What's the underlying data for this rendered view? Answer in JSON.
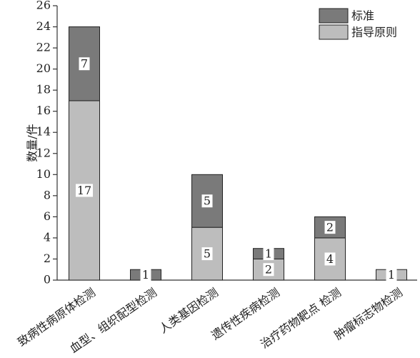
{
  "chart_data": {
    "type": "stacked_bar",
    "y_label": "数量/件",
    "categories": [
      "致病性病原体检测",
      "血型、组织配型检测",
      "人类基因检测",
      "遗传性疾病检测",
      "治疗药物靶点 检测",
      "肿瘤标志物检测"
    ],
    "series": [
      {
        "name": "指导原则",
        "color": "#bdbdbd",
        "values": [
          17,
          0,
          5,
          2,
          4,
          1
        ]
      },
      {
        "name": "标准",
        "color": "#7a7a7a",
        "values": [
          7,
          1,
          5,
          1,
          2,
          0
        ]
      }
    ],
    "ylim": [
      0,
      26
    ],
    "yticks": [
      0,
      2,
      4,
      6,
      8,
      10,
      12,
      14,
      16,
      18,
      20,
      22,
      24,
      26
    ],
    "legend": "top-right"
  }
}
